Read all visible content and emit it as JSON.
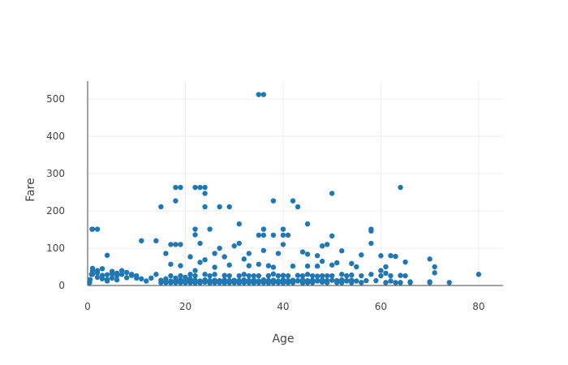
{
  "colors": {
    "marker": "#1f77b4",
    "grid": "#eeeeee",
    "axis": "#444444",
    "text": "#444444",
    "background": "#ffffff"
  },
  "chart_data": {
    "type": "scatter",
    "title": "",
    "xlabel": "Age",
    "ylabel": "Fare",
    "xlim": [
      0,
      80
    ],
    "ylim": [
      0,
      512
    ],
    "xticks": [
      0,
      20,
      40,
      60,
      80
    ],
    "yticks": [
      0,
      100,
      200,
      300,
      400,
      500
    ],
    "grid": true,
    "legend": "none",
    "series": [
      {
        "points": [
          [
            35,
            512
          ],
          [
            36,
            512
          ],
          [
            18,
            263
          ],
          [
            19,
            263
          ],
          [
            23,
            263
          ],
          [
            24,
            263
          ],
          [
            22,
            263
          ],
          [
            64,
            263
          ],
          [
            50,
            247
          ],
          [
            24,
            247
          ],
          [
            18,
            227
          ],
          [
            38,
            227
          ],
          [
            42,
            227
          ],
          [
            15,
            211
          ],
          [
            27,
            211
          ],
          [
            29,
            211
          ],
          [
            24,
            211
          ],
          [
            43,
            211
          ],
          [
            45,
            165
          ],
          [
            31,
            165
          ],
          [
            1,
            151
          ],
          [
            2,
            151
          ],
          [
            22,
            151
          ],
          [
            25,
            151
          ],
          [
            36,
            151
          ],
          [
            40,
            151
          ],
          [
            58,
            151
          ],
          [
            58,
            146
          ],
          [
            22,
            136
          ],
          [
            35,
            135
          ],
          [
            36,
            135
          ],
          [
            38,
            135
          ],
          [
            40,
            135
          ],
          [
            41,
            135
          ],
          [
            50,
            133
          ],
          [
            11,
            120
          ],
          [
            14,
            120
          ],
          [
            23,
            113
          ],
          [
            58,
            113
          ],
          [
            31,
            113
          ],
          [
            17,
            110
          ],
          [
            18,
            110
          ],
          [
            19,
            110
          ],
          [
            30,
            106
          ],
          [
            48,
            106
          ],
          [
            40,
            110
          ],
          [
            49,
            110
          ],
          [
            27,
            100
          ],
          [
            36,
            94
          ],
          [
            44,
            90
          ],
          [
            52,
            93
          ],
          [
            16,
            86
          ],
          [
            26,
            86
          ],
          [
            33,
            86
          ],
          [
            39,
            86
          ],
          [
            45,
            84
          ],
          [
            47,
            80
          ],
          [
            4,
            81
          ],
          [
            56,
            82
          ],
          [
            60,
            80
          ],
          [
            62,
            80
          ],
          [
            63,
            78
          ],
          [
            65,
            63
          ],
          [
            70,
            71
          ],
          [
            71,
            50
          ],
          [
            71,
            34
          ],
          [
            70,
            10
          ],
          [
            74,
            8
          ],
          [
            80,
            30
          ],
          [
            21,
            77
          ],
          [
            28,
            77
          ],
          [
            24,
            69
          ],
          [
            32,
            71
          ],
          [
            23,
            62
          ],
          [
            35,
            57
          ],
          [
            48,
            65
          ],
          [
            54,
            59
          ],
          [
            17,
            57
          ],
          [
            19,
            53
          ],
          [
            29,
            55
          ],
          [
            33,
            53
          ],
          [
            37,
            53
          ],
          [
            42,
            52
          ],
          [
            45,
            52
          ],
          [
            47,
            52
          ],
          [
            51,
            61
          ],
          [
            55,
            50
          ],
          [
            61,
            50
          ],
          [
            26,
            49
          ],
          [
            38,
            49
          ],
          [
            50,
            55
          ],
          [
            60,
            40
          ],
          [
            64,
            27
          ],
          [
            65,
            26
          ],
          [
            66,
            10
          ],
          [
            61,
            33
          ],
          [
            62,
            12
          ],
          [
            58,
            30
          ],
          [
            56,
            26
          ],
          [
            54,
            28
          ],
          [
            53,
            12
          ],
          [
            52,
            30
          ],
          [
            51,
            8
          ],
          [
            49,
            26
          ],
          [
            48,
            13
          ],
          [
            47,
            25
          ],
          [
            46,
            26
          ],
          [
            45,
            8
          ],
          [
            44,
            26
          ],
          [
            43,
            27
          ],
          [
            42,
            13
          ],
          [
            41,
            8
          ],
          [
            40,
            27
          ],
          [
            39,
            8
          ],
          [
            38,
            31
          ],
          [
            37,
            26
          ],
          [
            36,
            13
          ],
          [
            35,
            8
          ],
          [
            34,
            26
          ],
          [
            33,
            8
          ],
          [
            32,
            8
          ],
          [
            31,
            26
          ],
          [
            30,
            13
          ],
          [
            29,
            8
          ],
          [
            28,
            27
          ],
          [
            27,
            8
          ],
          [
            26,
            30
          ],
          [
            25,
            8
          ],
          [
            24,
            13
          ],
          [
            23,
            8
          ],
          [
            22,
            26
          ],
          [
            21,
            8
          ],
          [
            20,
            8
          ],
          [
            19,
            8
          ],
          [
            18,
            8
          ],
          [
            17,
            8
          ],
          [
            16,
            8
          ],
          [
            15,
            8
          ],
          [
            14,
            30
          ],
          [
            13,
            20
          ],
          [
            12,
            12
          ],
          [
            11,
            18
          ],
          [
            10,
            26
          ],
          [
            9,
            27
          ],
          [
            8,
            21
          ],
          [
            7,
            30
          ],
          [
            6,
            33
          ],
          [
            5,
            20
          ],
          [
            4,
            16
          ],
          [
            3,
            27
          ],
          [
            2,
            22
          ],
          [
            1,
            39
          ],
          [
            0.9,
            151
          ],
          [
            0.5,
            16
          ],
          [
            0.8,
            30
          ],
          [
            0.4,
            8
          ],
          [
            1,
            30
          ],
          [
            2,
            40
          ],
          [
            3,
            45
          ],
          [
            4,
            12
          ],
          [
            5,
            31
          ],
          [
            6,
            15
          ],
          [
            7,
            40
          ],
          [
            8,
            35
          ],
          [
            9,
            30
          ],
          [
            10,
            20
          ],
          [
            1,
            46
          ],
          [
            2,
            34
          ],
          [
            3,
            18
          ],
          [
            4,
            29
          ],
          [
            5,
            38
          ],
          [
            6,
            26
          ],
          [
            18,
            13
          ],
          [
            19,
            26
          ],
          [
            20,
            15
          ],
          [
            21,
            30
          ],
          [
            22,
            40
          ],
          [
            23,
            8
          ],
          [
            24,
            30
          ],
          [
            25,
            26
          ],
          [
            26,
            8
          ],
          [
            27,
            13
          ],
          [
            28,
            8
          ],
          [
            29,
            26
          ],
          [
            30,
            8
          ],
          [
            31,
            13
          ],
          [
            32,
            30
          ],
          [
            33,
            26
          ],
          [
            34,
            13
          ],
          [
            35,
            26
          ],
          [
            36,
            8
          ],
          [
            37,
            13
          ],
          [
            38,
            8
          ],
          [
            39,
            26
          ],
          [
            40,
            13
          ],
          [
            41,
            26
          ],
          [
            42,
            8
          ],
          [
            43,
            13
          ],
          [
            44,
            8
          ],
          [
            45,
            30
          ],
          [
            46,
            8
          ],
          [
            47,
            13
          ],
          [
            48,
            26
          ],
          [
            49,
            8
          ],
          [
            50,
            26
          ],
          [
            51,
            13
          ],
          [
            52,
            8
          ],
          [
            53,
            26
          ],
          [
            54,
            8
          ],
          [
            55,
            12
          ],
          [
            56,
            8
          ],
          [
            57,
            13
          ],
          [
            59,
            13
          ],
          [
            60,
            26
          ],
          [
            61,
            8
          ],
          [
            62,
            26
          ],
          [
            63,
            8
          ],
          [
            64,
            8
          ],
          [
            66,
            8
          ],
          [
            70,
            8
          ],
          [
            20,
            9
          ],
          [
            21,
            10
          ],
          [
            22,
            7
          ],
          [
            23,
            11
          ],
          [
            24,
            9
          ],
          [
            25,
            7
          ],
          [
            26,
            11
          ],
          [
            27,
            9
          ],
          [
            28,
            7
          ],
          [
            29,
            11
          ],
          [
            30,
            9
          ],
          [
            31,
            7
          ],
          [
            32,
            11
          ],
          [
            33,
            9
          ],
          [
            34,
            7
          ],
          [
            35,
            11
          ],
          [
            36,
            9
          ],
          [
            37,
            7
          ],
          [
            38,
            11
          ],
          [
            39,
            9
          ],
          [
            40,
            7
          ],
          [
            41,
            11
          ],
          [
            42,
            9
          ],
          [
            44,
            7
          ],
          [
            46,
            11
          ],
          [
            48,
            9
          ],
          [
            16,
            18
          ],
          [
            17,
            26
          ],
          [
            18,
            20
          ],
          [
            19,
            15
          ],
          [
            20,
            22
          ],
          [
            21,
            18
          ],
          [
            15,
            14
          ],
          [
            16,
            10
          ],
          [
            17,
            12
          ],
          [
            18,
            11
          ],
          [
            19,
            10
          ],
          [
            20,
            12
          ],
          [
            21,
            13
          ],
          [
            22,
            14
          ],
          [
            23,
            12
          ],
          [
            24,
            15
          ],
          [
            25,
            13
          ],
          [
            26,
            14
          ],
          [
            27,
            12
          ],
          [
            28,
            15
          ],
          [
            29,
            13
          ],
          [
            30,
            14
          ],
          [
            31,
            12
          ],
          [
            32,
            15
          ],
          [
            33,
            13
          ],
          [
            34,
            14
          ],
          [
            35,
            12
          ],
          [
            36,
            15
          ],
          [
            37,
            13
          ],
          [
            38,
            14
          ],
          [
            39,
            12
          ],
          [
            40,
            15
          ],
          [
            41,
            13
          ],
          [
            42,
            14
          ],
          [
            43,
            12
          ],
          [
            44,
            15
          ],
          [
            45,
            13
          ],
          [
            46,
            14
          ],
          [
            47,
            12
          ],
          [
            48,
            15
          ],
          [
            49,
            13
          ],
          [
            50,
            14
          ],
          [
            51,
            12
          ],
          [
            52,
            15
          ],
          [
            53,
            13
          ],
          [
            54,
            14
          ]
        ]
      }
    ]
  }
}
